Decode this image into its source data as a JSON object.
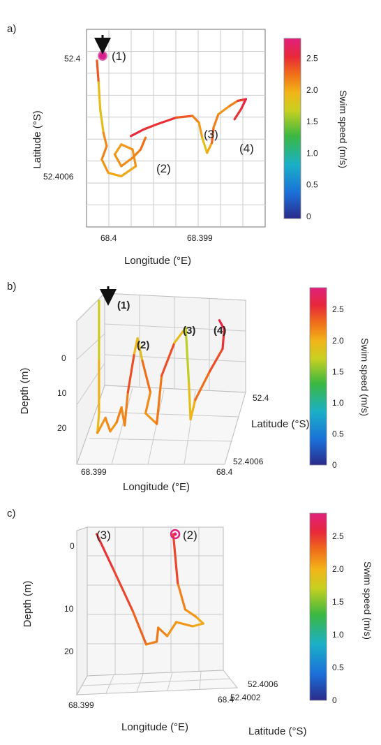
{
  "colorbar": {
    "ticks": [
      "0",
      "0.5",
      "1.0",
      "1.5",
      "2.0",
      "2.5"
    ],
    "tick_values": [
      0,
      0.5,
      1.0,
      1.5,
      2.0,
      2.5
    ],
    "range": [
      0,
      2.85
    ],
    "label": "Swim speed (m/s)",
    "colors": [
      "#2a2a8a",
      "#1b6fd8",
      "#1ab0c8",
      "#3cb840",
      "#c8d020",
      "#f2b418",
      "#f07018",
      "#e8283a",
      "#e0207c"
    ]
  },
  "chart_data": [
    {
      "type": "line",
      "panel_label": "a)",
      "xlabel": "Longitude (°E)",
      "ylabel": "Latitude (°S)",
      "x_ticks": [
        "68.4",
        "68.399"
      ],
      "y_ticks": [
        "52.4",
        "52.4006"
      ],
      "annotations": [
        "(1)",
        "(2)",
        "(3)",
        "(4)"
      ],
      "series": [
        {
          "points": [
            [
              0.03,
              0.07,
              2.5
            ],
            [
              0.04,
              0.2,
              2.0
            ],
            [
              0.05,
              0.36,
              1.4
            ],
            [
              0.07,
              0.5,
              1.9
            ],
            [
              0.09,
              0.58,
              2.1
            ],
            [
              0.06,
              0.66,
              2.0
            ],
            [
              0.1,
              0.74,
              1.9
            ],
            [
              0.18,
              0.76,
              1.8
            ],
            [
              0.27,
              0.7,
              1.9
            ],
            [
              0.25,
              0.6,
              2.0
            ],
            [
              0.18,
              0.57,
              1.9
            ],
            [
              0.14,
              0.63,
              1.9
            ],
            [
              0.18,
              0.7,
              2.0
            ],
            [
              0.25,
              0.65,
              2.0
            ],
            [
              0.3,
              0.6,
              2.1
            ],
            [
              0.33,
              0.53,
              2.2
            ]
          ]
        },
        {
          "points": [
            [
              0.24,
              0.52,
              2.6
            ],
            [
              0.32,
              0.48,
              2.4
            ],
            [
              0.4,
              0.45,
              2.5
            ],
            [
              0.52,
              0.41,
              2.4
            ],
            [
              0.62,
              0.4,
              2.1
            ],
            [
              0.66,
              0.44,
              2.0
            ],
            [
              0.68,
              0.53,
              1.8
            ],
            [
              0.71,
              0.62,
              1.4
            ],
            [
              0.74,
              0.56,
              2.3
            ],
            [
              0.75,
              0.47,
              2.1
            ],
            [
              0.78,
              0.39,
              2.0
            ],
            [
              0.85,
              0.34,
              1.9
            ],
            [
              0.9,
              0.31,
              2.2
            ],
            [
              0.95,
              0.3,
              2.6
            ],
            [
              0.92,
              0.36,
              2.5
            ],
            [
              0.88,
              0.42,
              2.4
            ]
          ]
        }
      ]
    },
    {
      "type": "line",
      "panel_label": "b)",
      "xlabel": "Longitude (°E)",
      "ylabel": "Depth (m)",
      "zlabel": "Latitude (°S)",
      "x_ticks": [
        "68.399",
        "68.4"
      ],
      "y_ticks": [
        "0",
        "10",
        "20"
      ],
      "z_ticks": [
        "52.4",
        "52.4006"
      ],
      "annotations": [
        "(1)",
        "(2)",
        "(3)",
        "(4)"
      ],
      "series": [
        {
          "points": [
            [
              0.13,
              0.05,
              1.0
            ],
            [
              0.13,
              0.45,
              2.0
            ],
            [
              0.13,
              0.8,
              1.6
            ],
            [
              0.12,
              0.93,
              1.8
            ],
            [
              0.17,
              0.83,
              2.1
            ],
            [
              0.2,
              0.92,
              1.9
            ],
            [
              0.24,
              0.86,
              2.0
            ],
            [
              0.27,
              0.76,
              2.1
            ],
            [
              0.29,
              0.88,
              1.9
            ],
            [
              0.31,
              0.66,
              2.2
            ],
            [
              0.35,
              0.4,
              2.4
            ],
            [
              0.37,
              0.3,
              1.1
            ],
            [
              0.4,
              0.45,
              2.2
            ],
            [
              0.45,
              0.66,
              2.1
            ],
            [
              0.42,
              0.8,
              1.9
            ],
            [
              0.49,
              0.87,
              2.0
            ],
            [
              0.52,
              0.55,
              2.2
            ],
            [
              0.6,
              0.33,
              2.4
            ],
            [
              0.67,
              0.23,
              1.0
            ],
            [
              0.69,
              0.6,
              1.8
            ],
            [
              0.7,
              0.84,
              1.5
            ],
            [
              0.73,
              0.71,
              2.1
            ],
            [
              0.82,
              0.52,
              2.2
            ],
            [
              0.9,
              0.37,
              2.4
            ],
            [
              0.91,
              0.24,
              2.5
            ],
            [
              0.88,
              0.18,
              2.6
            ]
          ]
        }
      ]
    },
    {
      "type": "line",
      "panel_label": "c)",
      "xlabel": "Longitude (°E)",
      "ylabel": "Depth (m)",
      "zlabel": "Latitude (°S)",
      "x_ticks": [
        "68.399",
        "68.4"
      ],
      "y_ticks": [
        "0",
        "10",
        "20"
      ],
      "z_ticks": [
        "52.4006",
        "52.4002"
      ],
      "annotations": [
        "(3)",
        "(2)"
      ],
      "series": [
        {
          "points": [
            [
              0.04,
              0.05,
              2.5
            ],
            [
              0.15,
              0.3,
              2.4
            ],
            [
              0.28,
              0.6,
              2.3
            ],
            [
              0.37,
              0.84,
              2.1
            ],
            [
              0.44,
              0.82,
              2.0
            ],
            [
              0.45,
              0.72,
              2.2
            ],
            [
              0.51,
              0.78,
              1.9
            ],
            [
              0.57,
              0.68,
              2.0
            ],
            [
              0.68,
              0.71,
              1.9
            ],
            [
              0.75,
              0.69,
              1.8
            ],
            [
              0.7,
              0.64,
              1.9
            ],
            [
              0.63,
              0.59,
              2.0
            ],
            [
              0.58,
              0.4,
              2.1
            ],
            [
              0.55,
              0.05,
              2.6
            ]
          ]
        }
      ]
    }
  ]
}
